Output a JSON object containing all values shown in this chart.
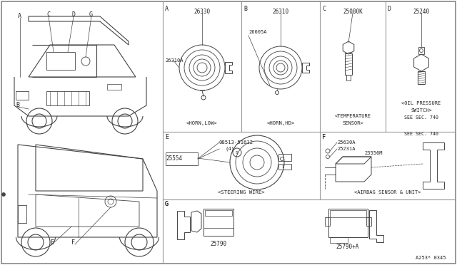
{
  "bg_color": "#ffffff",
  "line_color": "#444444",
  "grid_color": "#999999",
  "text_color": "#222222",
  "figsize": [
    6.4,
    3.72
  ],
  "dpi": 100,
  "ref_code": "A253* 0345",
  "sections": {
    "A_label": "A",
    "A_part1": "26330",
    "A_part2": "26310A",
    "A_caption": "<HORN,LOW>",
    "B_label": "B",
    "B_part1": "26310",
    "B_part2": "26605A",
    "B_caption": "<HORN,HD>",
    "C_label": "C",
    "C_part1": "25080K",
    "C_caption1": "<TEMPERATURE",
    "C_caption2": "SENSOR>",
    "D_label": "D",
    "D_part1": "25240",
    "D_caption1": "<OIL PRESSURE",
    "D_caption2": "SWITCH>",
    "E_label": "E",
    "E_part1": "25554",
    "E_part2": "08513-51612",
    "E_part3": "(4)",
    "E_caption": "<STEERING WIRE>",
    "F_label": "F",
    "F_part1": "25630A",
    "F_part2": "25231A",
    "F_part3": "23556M",
    "F_caption": "<AIRBAG SENSOR & UNIT>",
    "G_label": "G",
    "G_part1": "25790",
    "G_part2": "25790+A",
    "see_sec": "SEE SEC. 740"
  }
}
